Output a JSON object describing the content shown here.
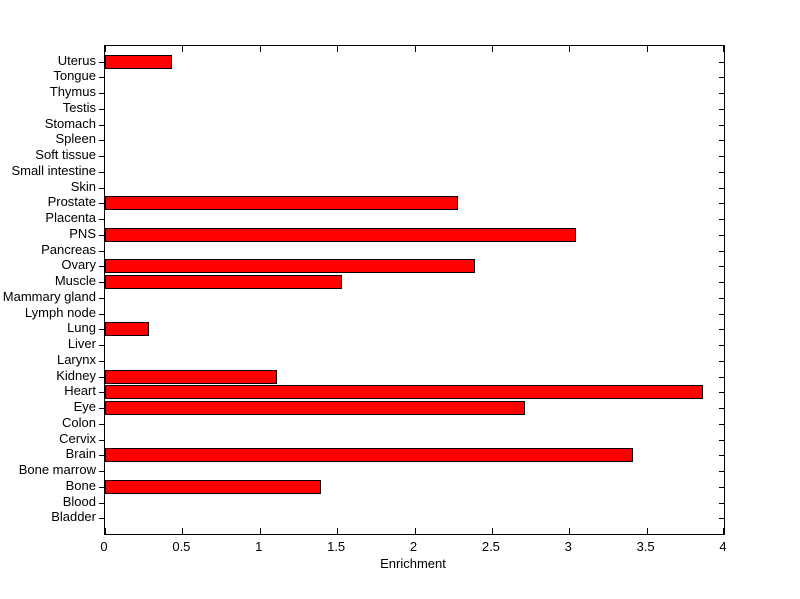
{
  "chart_data": {
    "type": "bar",
    "orientation": "horizontal",
    "title": "",
    "xlabel": "Enrichment",
    "ylabel": "",
    "categories_top_to_bottom": [
      "Uterus",
      "Tongue",
      "Thymus",
      "Testis",
      "Stomach",
      "Spleen",
      "Soft tissue",
      "Small intestine",
      "Skin",
      "Prostate",
      "Placenta",
      "PNS",
      "Pancreas",
      "Ovary",
      "Muscle",
      "Mammary gland",
      "Lymph node",
      "Lung",
      "Liver",
      "Larynx",
      "Kidney",
      "Heart",
      "Eye",
      "Colon",
      "Cervix",
      "Brain",
      "Bone marrow",
      "Bone",
      "Blood",
      "Bladder"
    ],
    "values_top_to_bottom": [
      0.42,
      0,
      0,
      0,
      0,
      0,
      0,
      0,
      0,
      2.27,
      0,
      3.03,
      0,
      2.38,
      1.52,
      0,
      0,
      0.27,
      0,
      0,
      1.1,
      3.85,
      2.7,
      0,
      0,
      3.4,
      0,
      1.38,
      0,
      0
    ],
    "xlim": [
      0,
      4
    ],
    "xticks": [
      0,
      0.5,
      1,
      1.5,
      2,
      2.5,
      3,
      3.5,
      4
    ],
    "xtick_labels": [
      "0",
      "0.5",
      "1",
      "1.5",
      "2",
      "2.5",
      "3",
      "3.5",
      "4"
    ],
    "grid": false,
    "legend": null,
    "bar_color": "#ff0000",
    "bar_edge_color": "#000000",
    "axis_color": "#000000",
    "background_color": "#ffffff"
  }
}
